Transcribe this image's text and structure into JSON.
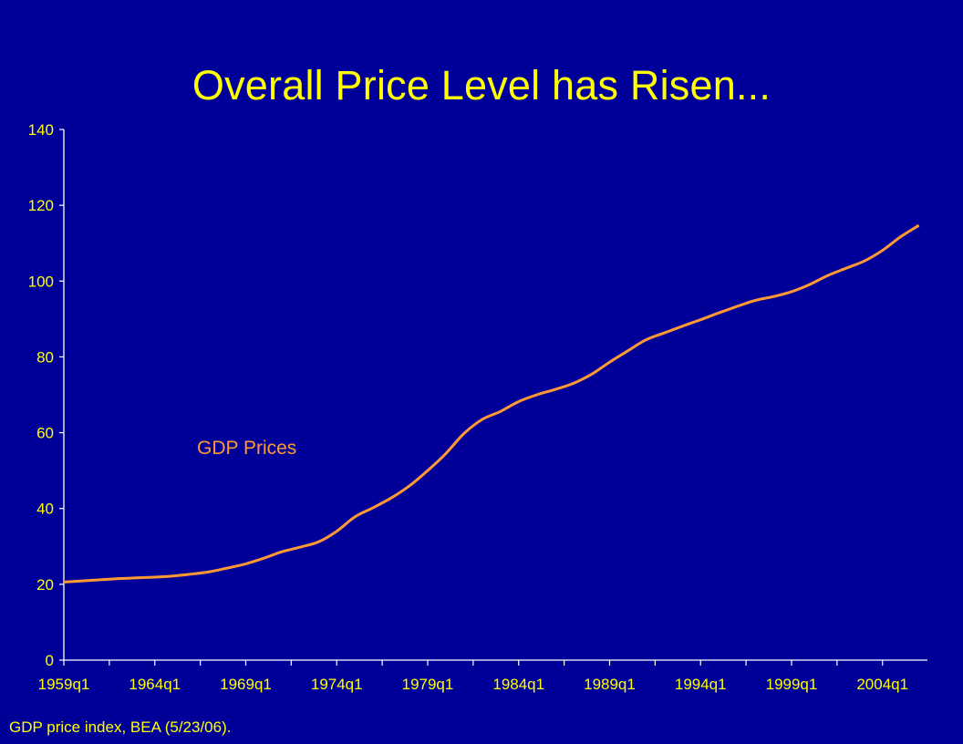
{
  "slide": {
    "title": "Overall Price Level has Risen...",
    "source_note": "GDP price index, BEA (5/23/06)."
  },
  "colors": {
    "background": "#000099",
    "text": "#FFFF00",
    "axis": "#FFFFFF",
    "series": "#FF9933"
  },
  "chart_data": {
    "type": "line",
    "title": "Overall Price Level has Risen...",
    "xlabel": "",
    "ylabel": "",
    "ylim": [
      0,
      140
    ],
    "yticks": [
      0,
      20,
      40,
      60,
      80,
      100,
      120,
      140
    ],
    "x_tick_labels": [
      "1959q1",
      "1964q1",
      "1969q1",
      "1974q1",
      "1979q1",
      "1984q1",
      "1989q1",
      "1994q1",
      "1999q1",
      "2004q1"
    ],
    "x_tick_years": [
      1959,
      1964,
      1969,
      1974,
      1979,
      1984,
      1989,
      1994,
      1999,
      2004
    ],
    "x_range": [
      "1959q1",
      "2006q1"
    ],
    "grid": false,
    "legend": "inline label",
    "series": [
      {
        "name": "GDP Prices",
        "x": [
          "1959q1",
          "1960q1",
          "1961q1",
          "1962q1",
          "1963q1",
          "1964q1",
          "1965q1",
          "1966q1",
          "1967q1",
          "1968q1",
          "1969q1",
          "1970q1",
          "1971q1",
          "1972q1",
          "1973q1",
          "1974q1",
          "1975q1",
          "1976q1",
          "1977q1",
          "1978q1",
          "1979q1",
          "1980q1",
          "1981q1",
          "1982q1",
          "1983q1",
          "1984q1",
          "1985q1",
          "1986q1",
          "1987q1",
          "1988q1",
          "1989q1",
          "1990q1",
          "1991q1",
          "1992q1",
          "1993q1",
          "1994q1",
          "1995q1",
          "1996q1",
          "1997q1",
          "1998q1",
          "1999q1",
          "2000q1",
          "2001q1",
          "2002q1",
          "2003q1",
          "2004q1",
          "2005q1",
          "2006q1"
        ],
        "values": [
          20.6,
          20.9,
          21.2,
          21.5,
          21.7,
          21.9,
          22.2,
          22.7,
          23.3,
          24.3,
          25.4,
          26.9,
          28.6,
          29.8,
          31.2,
          34.0,
          37.8,
          40.2,
          42.8,
          46.0,
          50.0,
          54.5,
          59.8,
          63.5,
          65.6,
          68.2,
          70.0,
          71.4,
          73.0,
          75.4,
          78.6,
          81.6,
          84.5,
          86.3,
          88.1,
          89.8,
          91.6,
          93.3,
          94.9,
          95.9,
          97.2,
          99.1,
          101.5,
          103.4,
          105.3,
          108.1,
          111.7,
          114.7
        ]
      }
    ],
    "series_label": "GDP Prices"
  }
}
